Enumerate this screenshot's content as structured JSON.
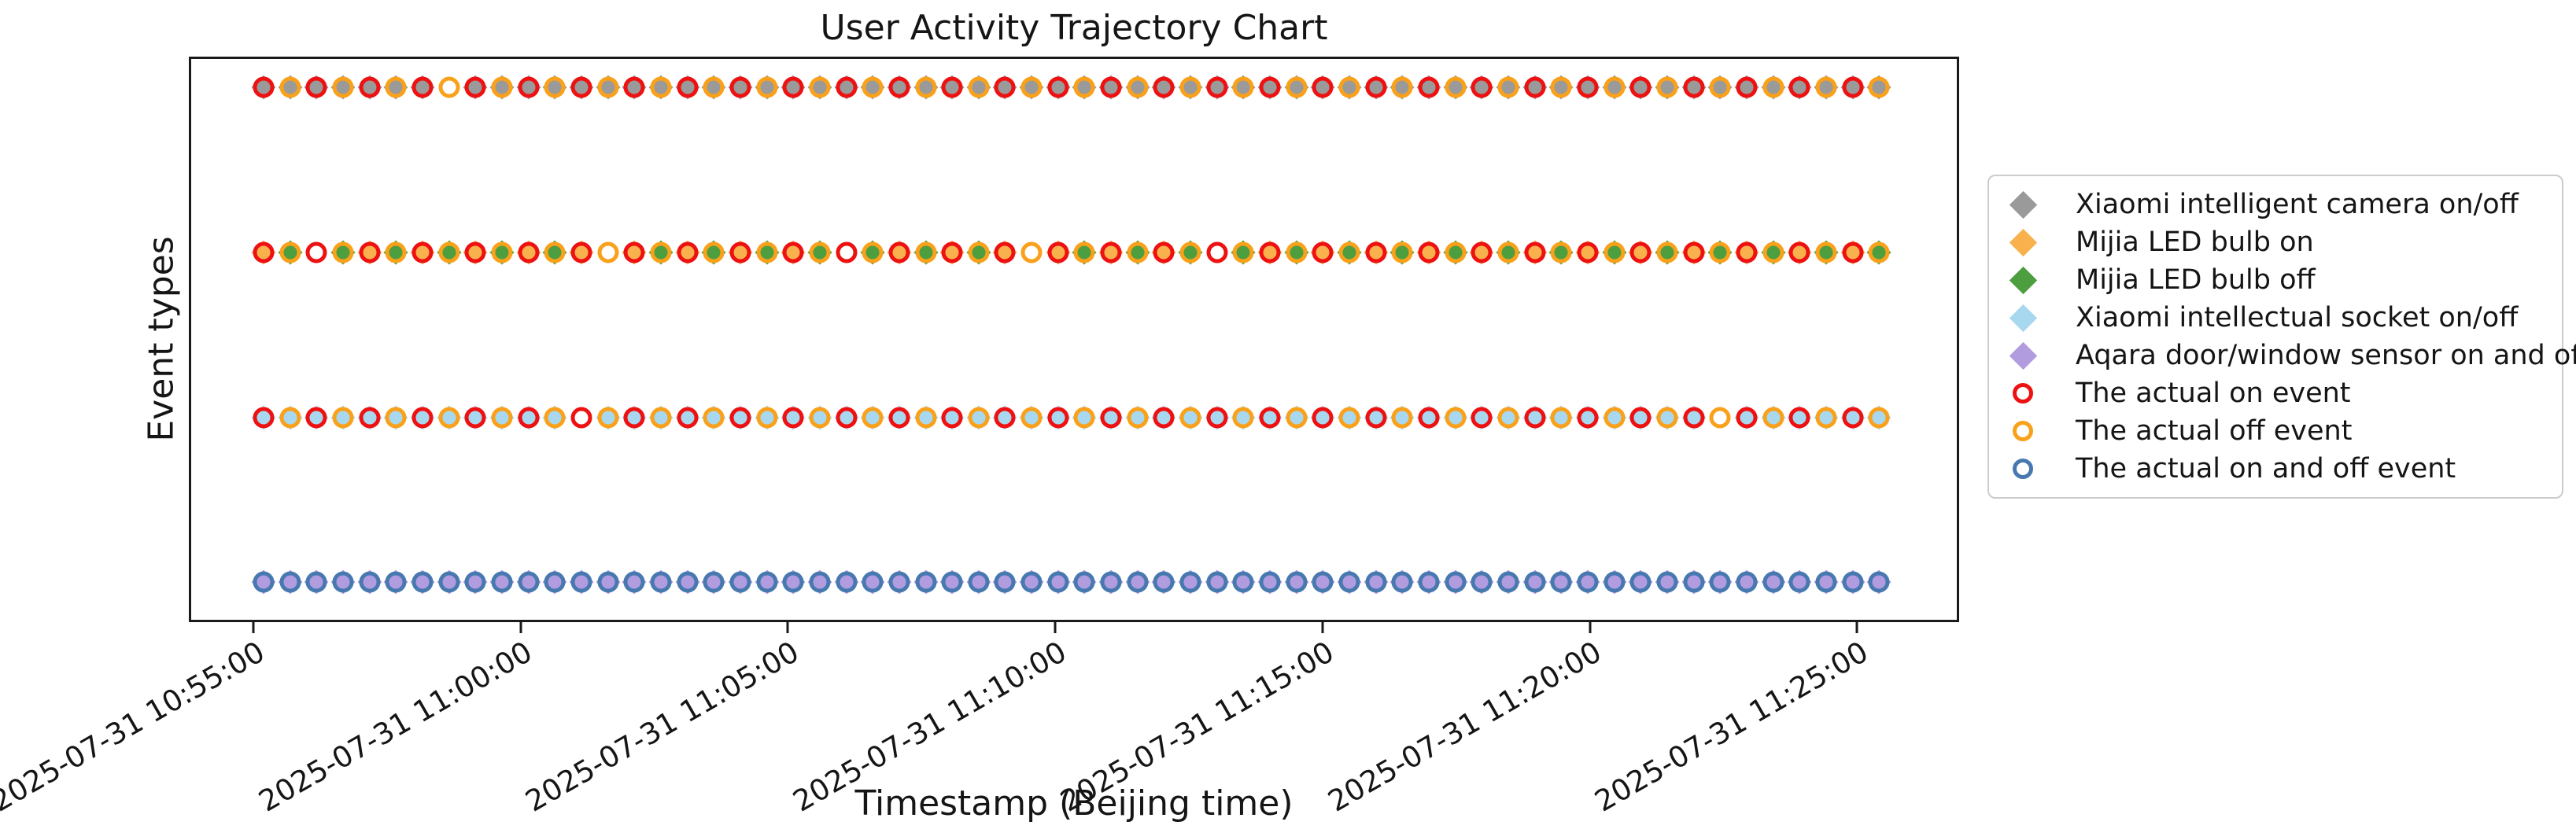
{
  "chart_data": {
    "type": "scatter",
    "title": "User Activity Trajectory Chart",
    "xlabel": "Timestamp (Beijing time)",
    "ylabel": "Event types",
    "x_tick_labels": [
      "2025-07-31 10:55:00",
      "2025-07-31 11:00:00",
      "2025-07-31 11:05:00",
      "2025-07-31 11:10:00",
      "2025-07-31 11:15:00",
      "2025-07-31 11:20:00",
      "2025-07-31 11:25:00"
    ],
    "x_axis_note": "events plotted every 30 seconds, approx 10:55:10 through 11:25:40",
    "x_interval_seconds": 30,
    "grid": false,
    "legend_position": "right outside",
    "y_categories_top_to_bottom": [
      "Xiaomi intelligent camera on/off",
      "Mijia LED bulb on/off",
      "Xiaomi intellectual socket on/off",
      "Aqara door/window sensor on and off"
    ],
    "series": [
      {
        "name": "Xiaomi intelligent camera on/off",
        "row": 0,
        "marker_count": 62,
        "circle_cycle": [
          "on",
          "off"
        ],
        "diamond_cycle": [
          "camera"
        ],
        "missing_diamond_at": [
          7
        ]
      },
      {
        "name": "Mijia LED bulb on/off",
        "row": 1,
        "marker_count": 62,
        "circle_cycle": [
          "on",
          "off"
        ],
        "diamond_cycle": [
          "bulb_on",
          "bulb_off"
        ],
        "missing_diamond_at": [
          2,
          13,
          22,
          29,
          36
        ]
      },
      {
        "name": "Xiaomi intellectual socket on/off",
        "row": 2,
        "marker_count": 62,
        "circle_cycle": [
          "on",
          "off"
        ],
        "diamond_cycle": [
          "socket"
        ],
        "missing_diamond_at": [
          12,
          55
        ]
      },
      {
        "name": "Aqara door/window sensor on and off",
        "row": 3,
        "marker_count": 62,
        "circle_cycle": [
          "onoff"
        ],
        "diamond_cycle": [
          "sensor"
        ],
        "missing_diamond_at": []
      }
    ]
  },
  "colors": {
    "camera": "#9a9a9a",
    "bulb_on": "#f9b14e",
    "bulb_off": "#4c9e3f",
    "socket": "#a8d8f0",
    "sensor": "#b29ce0",
    "ring_on": "#ee1111",
    "ring_off": "#f9a11b",
    "ring_onoff": "#4779b0",
    "axis": "#1a1a1a"
  },
  "legend": {
    "items": [
      {
        "label": "Xiaomi intelligent camera on/off",
        "marker": "diamond",
        "color_key": "camera"
      },
      {
        "label": "Mijia LED bulb on",
        "marker": "diamond",
        "color_key": "bulb_on"
      },
      {
        "label": "Mijia LED bulb off",
        "marker": "diamond",
        "color_key": "bulb_off"
      },
      {
        "label": "Xiaomi intellectual socket on/off",
        "marker": "diamond",
        "color_key": "socket"
      },
      {
        "label": "Aqara door/window sensor on and off",
        "marker": "diamond",
        "color_key": "sensor"
      },
      {
        "label": "The actual on event",
        "marker": "ring",
        "color_key": "ring_on"
      },
      {
        "label": "The actual off event",
        "marker": "ring",
        "color_key": "ring_off"
      },
      {
        "label": "The actual on and off event",
        "marker": "ring",
        "color_key": "ring_onoff"
      }
    ]
  }
}
